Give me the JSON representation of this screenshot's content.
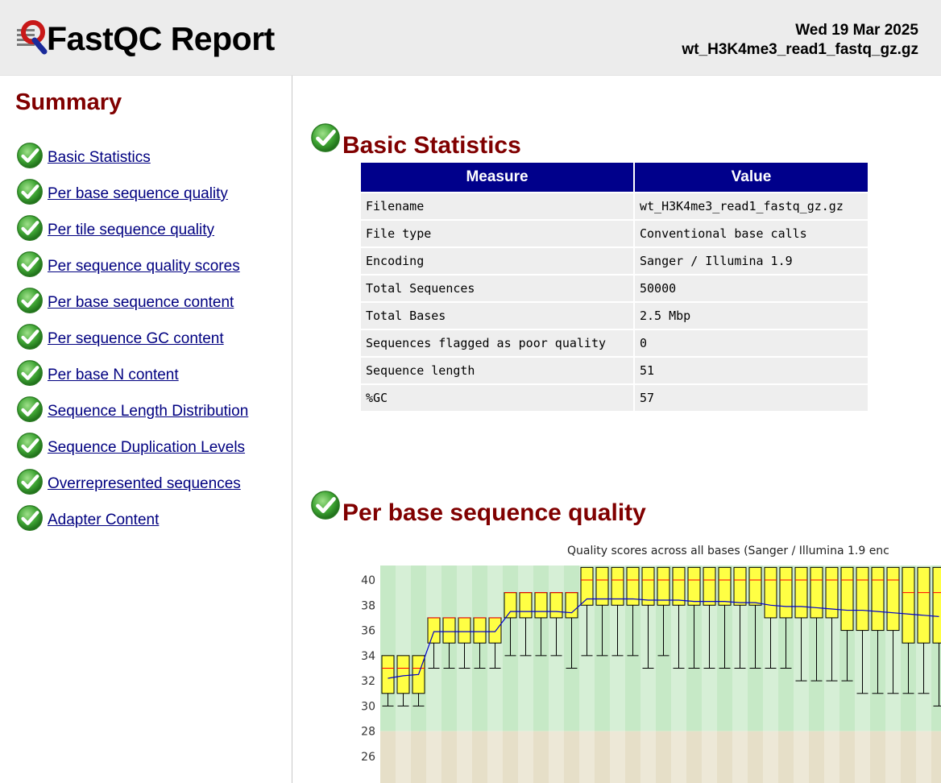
{
  "header": {
    "title": "FastQC Report",
    "date": "Wed 19 Mar 2025",
    "filename": "wt_H3K4me3_read1_fastq_gz.gz"
  },
  "summary": {
    "title": "Summary",
    "items": [
      {
        "label": "Basic Statistics",
        "status": "pass"
      },
      {
        "label": "Per base sequence quality",
        "status": "pass"
      },
      {
        "label": "Per tile sequence quality",
        "status": "pass"
      },
      {
        "label": "Per sequence quality scores",
        "status": "pass"
      },
      {
        "label": "Per base sequence content",
        "status": "pass"
      },
      {
        "label": "Per sequence GC content",
        "status": "pass"
      },
      {
        "label": "Per base N content",
        "status": "pass"
      },
      {
        "label": "Sequence Length Distribution",
        "status": "pass"
      },
      {
        "label": "Sequence Duplication Levels",
        "status": "pass"
      },
      {
        "label": "Overrepresented sequences",
        "status": "pass"
      },
      {
        "label": "Adapter Content",
        "status": "pass"
      }
    ]
  },
  "basic_stats": {
    "title": "Basic Statistics",
    "columns": [
      "Measure",
      "Value"
    ],
    "rows": [
      [
        "Filename",
        "wt_H3K4me3_read1_fastq_gz.gz"
      ],
      [
        "File type",
        "Conventional base calls"
      ],
      [
        "Encoding",
        "Sanger / Illumina 1.9"
      ],
      [
        "Total Sequences",
        "50000"
      ],
      [
        "Total Bases",
        "2.5 Mbp"
      ],
      [
        "Sequences flagged as poor quality",
        "0"
      ],
      [
        "Sequence length",
        "51"
      ],
      [
        "%GC",
        "57"
      ]
    ]
  },
  "per_base_quality": {
    "title": "Per base sequence quality",
    "plot_title": "Quality scores across all bases (Sanger / Illumina 1.9 enc"
  },
  "colors": {
    "accent": "#800000",
    "link": "#000080",
    "table_header": "#00008b",
    "pass_icon": "#3a9a2a",
    "box_fill": "#ffff44",
    "median": "#ff0000",
    "mean_line": "#0000cc",
    "zone_good": "#c6e9c6",
    "zone_ok": "#e6dfc8"
  },
  "chart_data": {
    "type": "box",
    "title": "Quality scores across all bases (Sanger / Illumina 1.9 enc",
    "ylim": [
      25,
      41
    ],
    "y_ticks": [
      "26",
      "28",
      "30",
      "32",
      "34",
      "36",
      "38",
      "40"
    ],
    "visible_positions": 37,
    "series": [
      {
        "name": "box",
        "values": [
          {
            "pos": 1,
            "p10": 30,
            "q1": 31,
            "med": 33,
            "q3": 34,
            "p90": 34
          },
          {
            "pos": 2,
            "p10": 30,
            "q1": 31,
            "med": 33,
            "q3": 34,
            "p90": 34
          },
          {
            "pos": 3,
            "p10": 30,
            "q1": 31,
            "med": 33,
            "q3": 34,
            "p90": 34
          },
          {
            "pos": 4,
            "p10": 33,
            "q1": 35,
            "med": 37,
            "q3": 37,
            "p90": 37
          },
          {
            "pos": 5,
            "p10": 33,
            "q1": 35,
            "med": 37,
            "q3": 37,
            "p90": 37
          },
          {
            "pos": 6,
            "p10": 33,
            "q1": 35,
            "med": 37,
            "q3": 37,
            "p90": 37
          },
          {
            "pos": 7,
            "p10": 33,
            "q1": 35,
            "med": 37,
            "q3": 37,
            "p90": 37
          },
          {
            "pos": 8,
            "p10": 33,
            "q1": 35,
            "med": 37,
            "q3": 37,
            "p90": 37
          },
          {
            "pos": 9,
            "p10": 34,
            "q1": 37,
            "med": 39,
            "q3": 39,
            "p90": 39
          },
          {
            "pos": 10,
            "p10": 34,
            "q1": 37,
            "med": 39,
            "q3": 39,
            "p90": 39
          },
          {
            "pos": 11,
            "p10": 34,
            "q1": 37,
            "med": 39,
            "q3": 39,
            "p90": 39
          },
          {
            "pos": 12,
            "p10": 34,
            "q1": 37,
            "med": 39,
            "q3": 39,
            "p90": 39
          },
          {
            "pos": 13,
            "p10": 33,
            "q1": 37,
            "med": 39,
            "q3": 39,
            "p90": 39
          },
          {
            "pos": 14,
            "p10": 34,
            "q1": 38,
            "med": 40,
            "q3": 41,
            "p90": 41
          },
          {
            "pos": 15,
            "p10": 34,
            "q1": 38,
            "med": 40,
            "q3": 41,
            "p90": 41
          },
          {
            "pos": 16,
            "p10": 34,
            "q1": 38,
            "med": 40,
            "q3": 41,
            "p90": 41
          },
          {
            "pos": 17,
            "p10": 34,
            "q1": 38,
            "med": 40,
            "q3": 41,
            "p90": 41
          },
          {
            "pos": 18,
            "p10": 33,
            "q1": 38,
            "med": 40,
            "q3": 41,
            "p90": 41
          },
          {
            "pos": 19,
            "p10": 34,
            "q1": 38,
            "med": 40,
            "q3": 41,
            "p90": 41
          },
          {
            "pos": 20,
            "p10": 33,
            "q1": 38,
            "med": 40,
            "q3": 41,
            "p90": 41
          },
          {
            "pos": 21,
            "p10": 33,
            "q1": 38,
            "med": 40,
            "q3": 41,
            "p90": 41
          },
          {
            "pos": 22,
            "p10": 33,
            "q1": 38,
            "med": 40,
            "q3": 41,
            "p90": 41
          },
          {
            "pos": 23,
            "p10": 33,
            "q1": 38,
            "med": 40,
            "q3": 41,
            "p90": 41
          },
          {
            "pos": 24,
            "p10": 33,
            "q1": 38,
            "med": 40,
            "q3": 41,
            "p90": 41
          },
          {
            "pos": 25,
            "p10": 33,
            "q1": 38,
            "med": 40,
            "q3": 41,
            "p90": 41
          },
          {
            "pos": 26,
            "p10": 33,
            "q1": 37,
            "med": 40,
            "q3": 41,
            "p90": 41
          },
          {
            "pos": 27,
            "p10": 33,
            "q1": 37,
            "med": 40,
            "q3": 41,
            "p90": 41
          },
          {
            "pos": 28,
            "p10": 32,
            "q1": 37,
            "med": 40,
            "q3": 41,
            "p90": 41
          },
          {
            "pos": 29,
            "p10": 32,
            "q1": 37,
            "med": 40,
            "q3": 41,
            "p90": 41
          },
          {
            "pos": 30,
            "p10": 32,
            "q1": 37,
            "med": 40,
            "q3": 41,
            "p90": 41
          },
          {
            "pos": 31,
            "p10": 32,
            "q1": 36,
            "med": 40,
            "q3": 41,
            "p90": 41
          },
          {
            "pos": 32,
            "p10": 31,
            "q1": 36,
            "med": 40,
            "q3": 41,
            "p90": 41
          },
          {
            "pos": 33,
            "p10": 31,
            "q1": 36,
            "med": 40,
            "q3": 41,
            "p90": 41
          },
          {
            "pos": 34,
            "p10": 31,
            "q1": 36,
            "med": 40,
            "q3": 41,
            "p90": 41
          },
          {
            "pos": 35,
            "p10": 31,
            "q1": 35,
            "med": 39,
            "q3": 41,
            "p90": 41
          },
          {
            "pos": 36,
            "p10": 31,
            "q1": 35,
            "med": 39,
            "q3": 41,
            "p90": 41
          },
          {
            "pos": 37,
            "p10": 30,
            "q1": 35,
            "med": 39,
            "q3": 41,
            "p90": 41
          }
        ]
      },
      {
        "name": "mean",
        "values": [
          32.2,
          32.4,
          32.5,
          35.9,
          35.9,
          35.9,
          35.9,
          35.9,
          37.5,
          37.5,
          37.5,
          37.5,
          37.4,
          38.5,
          38.5,
          38.5,
          38.5,
          38.4,
          38.4,
          38.4,
          38.3,
          38.3,
          38.3,
          38.2,
          38.2,
          38.0,
          37.9,
          37.9,
          37.8,
          37.7,
          37.6,
          37.6,
          37.5,
          37.4,
          37.3,
          37.2,
          37.1
        ]
      }
    ]
  }
}
